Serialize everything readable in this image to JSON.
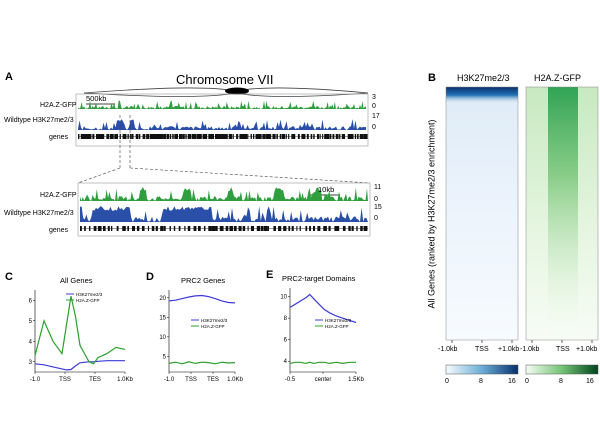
{
  "panelA": {
    "letter": "A",
    "chromosome_label": "Chromosome VII",
    "scale_top": "500kb",
    "scale_zoom": "10kb",
    "track_h2az": "H2A.Z-GFP",
    "track_k27": "Wildtype H3K27me2/3",
    "track_genes": "genes",
    "top_h2az_max": "3",
    "top_h2az_min": "0",
    "top_k27_max": "17",
    "top_k27_min": "0",
    "zoom_h2az_max": "11",
    "zoom_h2az_min": "0",
    "zoom_k27_max": "15",
    "zoom_k27_min": "0",
    "colors": {
      "h2az": "#2e9e3e",
      "k27": "#2a4fa8",
      "genes": "#111111"
    }
  },
  "panelB": {
    "letter": "B",
    "title_left": "H3K27me2/3",
    "title_right": "H2A.Z-GFP",
    "ylabel": "All Genes (ranked by H3K27me2/3 enrichment)",
    "xticks_left": [
      "-1.0kb",
      "TSS",
      "+1.0kb"
    ],
    "xticks_right": [
      "-1.0kb",
      "TSS",
      "+1.0kb"
    ],
    "cbar_left": [
      "0",
      "8",
      "16"
    ],
    "cbar_right": [
      "0",
      "8",
      "16"
    ],
    "colors": {
      "blue_dark": "#08306b",
      "blue_mid": "#6baed6",
      "green_dark": "#00441b",
      "green_mid": "#74c476"
    }
  },
  "chart_data": [
    {
      "panel": "C",
      "type": "line",
      "title": "All Genes",
      "xticks": [
        "-1.0",
        "TSS",
        "TES",
        "1.0Kb"
      ],
      "yticks": [
        "3",
        "4",
        "5",
        "6"
      ],
      "ylim": [
        2.5,
        6.5
      ],
      "x": [
        0,
        0.1,
        0.2,
        0.3,
        0.35,
        0.4,
        0.45,
        0.5,
        0.6,
        0.65,
        0.7,
        0.8,
        0.9,
        1.0
      ],
      "series": [
        {
          "name": "H3K27me2/3",
          "color": "#3b3bdb",
          "values": [
            2.9,
            2.85,
            2.75,
            2.65,
            2.6,
            2.62,
            2.8,
            2.95,
            3.0,
            3.0,
            3.02,
            3.05,
            3.05,
            3.05
          ]
        },
        {
          "name": "H2A.Z-GFP",
          "color": "#2ca02c",
          "values": [
            3.3,
            5.0,
            4.0,
            3.4,
            4.8,
            6.2,
            5.2,
            3.8,
            3.0,
            2.9,
            3.2,
            3.4,
            3.7,
            3.6
          ]
        }
      ]
    },
    {
      "panel": "D",
      "type": "line",
      "title": "PRC2 Genes",
      "xticks": [
        "-1.0",
        "TSS",
        "TES",
        "1.0Kb"
      ],
      "yticks": [
        "5",
        "10",
        "15",
        "20"
      ],
      "ylim": [
        1,
        22
      ],
      "x": [
        0,
        0.1,
        0.2,
        0.3,
        0.4,
        0.5,
        0.6,
        0.7,
        0.8,
        0.9,
        1.0
      ],
      "series": [
        {
          "name": "H3K27me2/3",
          "color": "#3b3bdb",
          "values": [
            19.2,
            19.4,
            19.8,
            20.2,
            20.5,
            20.6,
            20.3,
            19.8,
            19.2,
            18.8,
            18.7
          ]
        },
        {
          "name": "H2A.Z-GFP",
          "color": "#2ca02c",
          "values": [
            3.2,
            3.5,
            3.1,
            3.6,
            3.2,
            3.5,
            3.4,
            3.1,
            3.5,
            3.3,
            3.4
          ]
        }
      ]
    },
    {
      "panel": "E",
      "type": "line",
      "title": "PRC2-target Domains",
      "xticks": [
        "-0.5",
        "center",
        "1.5Kb"
      ],
      "yticks": [
        "4",
        "6",
        "8",
        "10"
      ],
      "ylim": [
        3,
        10.8
      ],
      "x": [
        0,
        0.08,
        0.16,
        0.24,
        0.3,
        0.36,
        0.44,
        0.52,
        0.6,
        0.7,
        0.8,
        0.9,
        1.0
      ],
      "series": [
        {
          "name": "H3K27me2/3",
          "color": "#3b3bdb",
          "values": [
            9.0,
            9.3,
            9.6,
            9.9,
            10.2,
            9.8,
            9.3,
            8.8,
            8.5,
            8.2,
            8.0,
            7.8,
            7.6
          ]
        },
        {
          "name": "H2A.Z-GFP",
          "color": "#2ca02c",
          "values": [
            3.8,
            3.9,
            3.9,
            3.8,
            3.9,
            3.8,
            3.9,
            3.9,
            3.8,
            3.9,
            3.8,
            3.9,
            3.9
          ]
        }
      ]
    }
  ]
}
